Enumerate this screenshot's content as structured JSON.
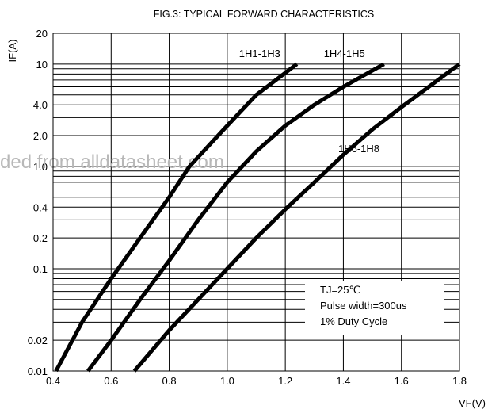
{
  "chart_data": {
    "type": "line",
    "title": "FIG.3: TYPICAL FORWARD CHARACTERISTICS",
    "xlabel": "VF(V)",
    "ylabel": "IF(A)",
    "xlim": [
      0.4,
      1.8
    ],
    "ylim": [
      0.01,
      20
    ],
    "yscale": "log",
    "grid": true,
    "xticks": [
      0.4,
      0.6,
      0.8,
      1.0,
      1.2,
      1.4,
      1.6,
      1.8
    ],
    "xtick_labels": [
      "0.4",
      "0.6",
      "0.8",
      "1.0",
      "1.2",
      "1.4",
      "1.6",
      "1.8"
    ],
    "yticks": [
      0.01,
      0.02,
      0.1,
      0.2,
      0.4,
      1,
      2,
      4,
      10,
      20
    ],
    "ytick_labels": [
      "0.01",
      "0.02",
      "0.1",
      "0.2",
      "0.4",
      "1.0",
      "2.0",
      "4.0",
      "10",
      "20"
    ],
    "series": [
      {
        "name": "1H1-1H3",
        "color": "#000000",
        "x": [
          0.41,
          0.5,
          0.6,
          0.7,
          0.8,
          0.87,
          1.0,
          1.1,
          1.24
        ],
        "y": [
          0.01,
          0.03,
          0.08,
          0.2,
          0.5,
          1.0,
          2.5,
          5.0,
          10
        ]
      },
      {
        "name": "1H4-1H5",
        "color": "#000000",
        "x": [
          0.52,
          0.6,
          0.7,
          0.8,
          0.9,
          1.0,
          1.1,
          1.2,
          1.3,
          1.4,
          1.54
        ],
        "y": [
          0.01,
          0.02,
          0.05,
          0.12,
          0.3,
          0.7,
          1.4,
          2.5,
          4.0,
          6.0,
          10
        ]
      },
      {
        "name": "1H6-1H8",
        "color": "#000000",
        "x": [
          0.68,
          0.8,
          0.9,
          1.0,
          1.1,
          1.2,
          1.3,
          1.4,
          1.5,
          1.6,
          1.8
        ],
        "y": [
          0.01,
          0.025,
          0.05,
          0.1,
          0.2,
          0.38,
          0.7,
          1.3,
          2.3,
          3.8,
          10
        ]
      }
    ],
    "annotations": [
      "TJ=25℃",
      "Pulse width=300us",
      "1% Duty Cycle"
    ]
  },
  "watermark": "ded from alldatasheet.com"
}
